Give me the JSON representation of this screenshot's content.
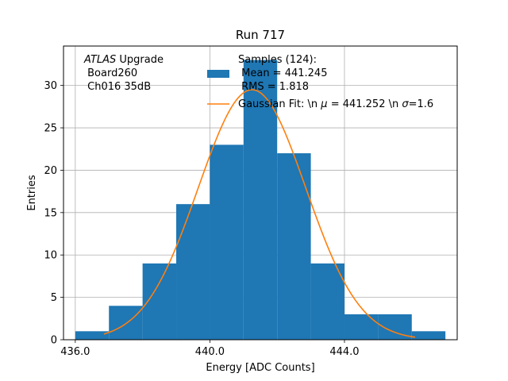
{
  "chart_data": {
    "type": "bar",
    "title": "Run 717",
    "xlabel": "Energy [ADC Counts]",
    "ylabel": "Entries",
    "xlim": [
      435.65,
      447.35
    ],
    "ylim": [
      0,
      34.65
    ],
    "grid": true,
    "legend_placement": "top-right",
    "bin_edges": [
      436,
      437,
      438,
      439,
      440,
      441,
      442,
      443,
      444,
      445,
      446,
      447
    ],
    "values": [
      1,
      4,
      9,
      16,
      23,
      33,
      22,
      9,
      3,
      3,
      1
    ],
    "x_ticks": [
      436,
      440,
      444
    ],
    "x_tick_labels": [
      "436.0",
      "440.0",
      "444.0"
    ],
    "y_ticks": [
      0,
      5,
      10,
      15,
      20,
      25,
      30
    ],
    "y_tick_labels": [
      "0",
      "5",
      "10",
      "15",
      "20",
      "25",
      "30"
    ],
    "fit": {
      "mu": 441.252,
      "sigma": 1.6,
      "amplitude": 29.5,
      "x_range": [
        436.85,
        446.1
      ]
    },
    "annotation": {
      "line1_italic": "ATLAS",
      "line1_rest": " Upgrade",
      "line2": " Board260",
      "line3": " Ch016 35dB"
    },
    "legend": {
      "samples": {
        "line1": "Samples (124):",
        "line2": " Mean = 441.245",
        "line3": " RMS = 1.818"
      },
      "fit": {
        "before_mu": "Gaussian Fit: \\n ",
        "mu_symbol": "μ",
        "after_mu": " = 441.252 \\n ",
        "sigma_symbol": "σ",
        "after_sigma": "=1.6"
      }
    },
    "colors": {
      "bar": "#1f77b4",
      "fit": "#ff7f0e",
      "grid": "#b0b0b0"
    }
  }
}
